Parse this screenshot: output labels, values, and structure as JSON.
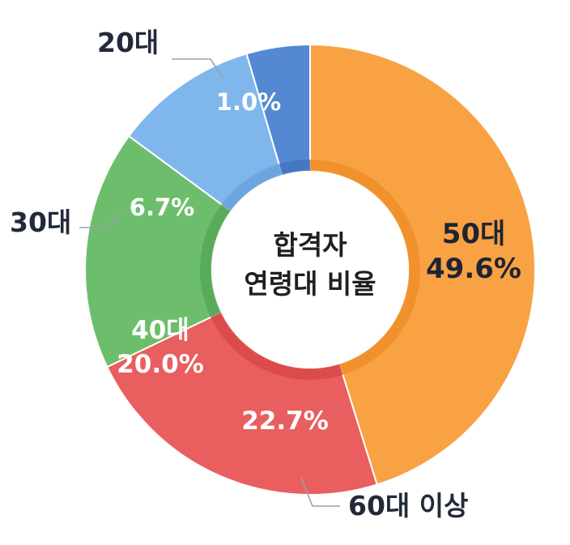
{
  "chart_data": {
    "type": "pie",
    "title": "합격자 연령대 비율",
    "title_lines": [
      "합격자",
      "연령대 비율"
    ],
    "categories": [
      "50대",
      "60대 이상",
      "40대",
      "30대",
      "20대"
    ],
    "values": [
      49.6,
      22.7,
      20.0,
      6.7,
      1.0
    ],
    "value_labels": [
      "49.6%",
      "22.7%",
      "20.0%",
      "6.7%",
      "1.0%"
    ],
    "colors": [
      "#F9A244",
      "#E95E5E",
      "#6DBE6C",
      "#7FB6EC",
      "#5588D2"
    ],
    "donut": true,
    "legend": "none"
  }
}
